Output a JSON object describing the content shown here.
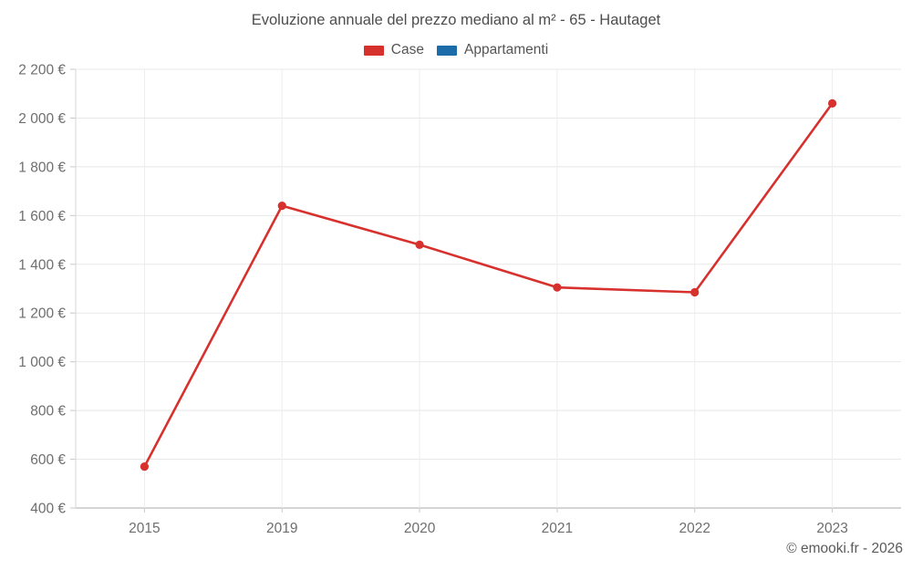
{
  "title": "Evoluzione annuale del prezzo mediano al m² - 65 - Hautaget",
  "footer": "© emooki.fr - 2026",
  "legend": [
    {
      "label": "Case",
      "color": "#d7312e"
    },
    {
      "label": "Appartamenti",
      "color": "#1b6ca8"
    }
  ],
  "colors": {
    "case_red": "#d7312e",
    "appartamenti_blue": "#1b6ca8",
    "gridline": "#e8e8e8",
    "axis_line": "#d6d6d6",
    "bottom_axis": "#ababab",
    "tick": "#c9c9c9",
    "tick_text": "#6e6e6e",
    "title_text": "#4d4d4d"
  },
  "chart_data": {
    "type": "line",
    "title": "Evoluzione annuale del prezzo mediano al m² - 65 - Hautaget",
    "x": [
      "2015",
      "2019",
      "2020",
      "2021",
      "2022",
      "2023"
    ],
    "series": [
      {
        "name": "Case",
        "color": "#d7312e",
        "values": [
          570,
          1640,
          1480,
          1305,
          1285,
          2060
        ]
      },
      {
        "name": "Appartamenti",
        "color": "#1b6ca8",
        "values": []
      }
    ],
    "xlabel": "",
    "ylabel": "",
    "ylim": [
      400,
      2200
    ],
    "grid": true,
    "legend_position": "top",
    "yticks": [
      {
        "v": 400,
        "label": "400 €"
      },
      {
        "v": 600,
        "label": "600 €"
      },
      {
        "v": 800,
        "label": "800 €"
      },
      {
        "v": 1000,
        "label": "1 000 €"
      },
      {
        "v": 1200,
        "label": "1 200 €"
      },
      {
        "v": 1400,
        "label": "1 400 €"
      },
      {
        "v": 1600,
        "label": "1 600 €"
      },
      {
        "v": 1800,
        "label": "1 800 €"
      },
      {
        "v": 2000,
        "label": "2 000 €"
      },
      {
        "v": 2200,
        "label": "2 200 €"
      }
    ]
  }
}
